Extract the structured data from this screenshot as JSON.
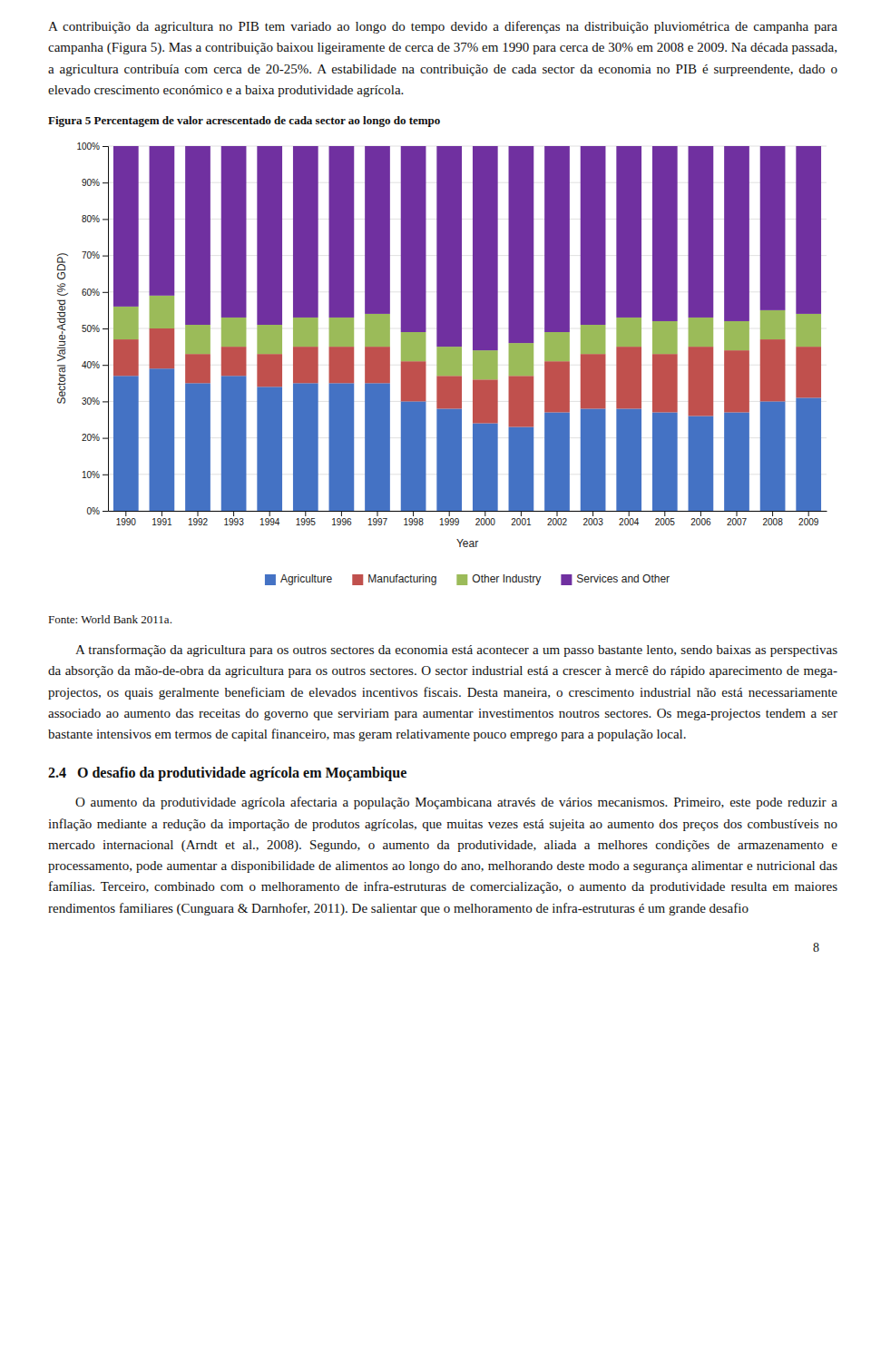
{
  "top_paragraph": "A contribuição da agricultura no PIB tem variado ao longo do tempo devido a diferenças na distribuição pluviométrica de campanha para campanha (Figura 5). Mas a contribuição baixou ligeiramente de cerca de 37% em 1990 para cerca de 30% em 2008 e 2009. Na década passada, a agricultura contribuía com cerca de 20-25%. A estabilidade na contribuição de cada sector da economia no PIB é surpreendente, dado o elevado crescimento económico e a baixa produtividade agrícola.",
  "chart_data": {
    "type": "bar",
    "title": "Figura 5 Percentagem de valor acrescentado de cada sector ao longo do tempo",
    "stacked": true,
    "categories": [
      "1990",
      "1991",
      "1992",
      "1993",
      "1994",
      "1995",
      "1996",
      "1997",
      "1998",
      "1999",
      "2000",
      "2001",
      "2002",
      "2003",
      "2004",
      "2005",
      "2006",
      "2007",
      "2008",
      "2009"
    ],
    "series": [
      {
        "name": "Agriculture",
        "color": "#4472C4",
        "values": [
          37,
          39,
          35,
          37,
          34,
          35,
          35,
          35,
          30,
          28,
          24,
          23,
          27,
          28,
          28,
          27,
          26,
          27,
          30,
          31
        ]
      },
      {
        "name": "Manufacturing",
        "color": "#C0504D",
        "values": [
          10,
          11,
          8,
          8,
          9,
          10,
          10,
          10,
          11,
          9,
          12,
          14,
          14,
          15,
          17,
          16,
          19,
          17,
          17,
          14
        ]
      },
      {
        "name": "Other Industry",
        "color": "#9BBB59",
        "values": [
          9,
          9,
          8,
          8,
          8,
          8,
          8,
          9,
          8,
          8,
          8,
          9,
          8,
          8,
          8,
          9,
          8,
          8,
          8,
          9
        ]
      },
      {
        "name": "Services and Other",
        "color": "#7030A0",
        "values": [
          44,
          41,
          49,
          47,
          49,
          47,
          47,
          46,
          51,
          55,
          56,
          54,
          51,
          49,
          47,
          48,
          47,
          48,
          45,
          46
        ]
      }
    ],
    "xlabel": "Year",
    "ylabel": "Sectoral Value-Added (% GDP)",
    "ylim": [
      0,
      100
    ],
    "yticks": [
      {
        "value": 0,
        "label": "0%"
      },
      {
        "value": 10,
        "label": "10%"
      },
      {
        "value": 20,
        "label": "20%"
      },
      {
        "value": 30,
        "label": "30%"
      },
      {
        "value": 40,
        "label": "40%"
      },
      {
        "value": 50,
        "label": "50%"
      },
      {
        "value": 60,
        "label": "60%"
      },
      {
        "value": 70,
        "label": "70%"
      },
      {
        "value": 80,
        "label": "80%"
      },
      {
        "value": 90,
        "label": "90%"
      },
      {
        "value": 100,
        "label": "100%"
      }
    ],
    "grid": true,
    "legend": "bottom"
  },
  "source": "Fonte: World Bank 2011a.",
  "middle_paragraph": "A transformação da agricultura para os outros sectores da economia está acontecer a um passo bastante lento, sendo baixas as perspectivas da absorção da mão-de-obra da agricultura para os outros sectores. O sector industrial está a crescer à mercê do rápido aparecimento de mega-projectos, os quais geralmente beneficiam de elevados incentivos fiscais. Desta maneira, o crescimento industrial não está necessariamente associado ao aumento das receitas do governo que serviriam para aumentar investimentos noutros sectores. Os mega-projectos tendem a ser bastante intensivos em termos de capital financeiro, mas geram relativamente pouco emprego para a população local.",
  "section_head": "2.4\tO desafio da produtividade agrícola em Moçambique",
  "bottom_paragraph": "O aumento da produtividade agrícola afectaria a população Moçambicana através de vários mecanismos. Primeiro, este pode reduzir a inflação mediante a redução da importação de produtos agrícolas, que muitas vezes está sujeita ao aumento dos preços dos combustíveis no mercado internacional (Arndt et al., 2008). Segundo, o aumento da produtividade, aliada a melhores condições de armazenamento e processamento, pode aumentar a disponibilidade de alimentos ao longo do ano, melhorando deste modo a segurança alimentar e nutricional das famílias. Terceiro, combinado com o melhoramento de infra-estruturas de comercialização, o aumento da produtividade resulta em maiores rendimentos familiares (Cunguara & Darnhofer, 2011). De salientar que o melhoramento de infra-estruturas é um grande desafio",
  "page_number": "8"
}
